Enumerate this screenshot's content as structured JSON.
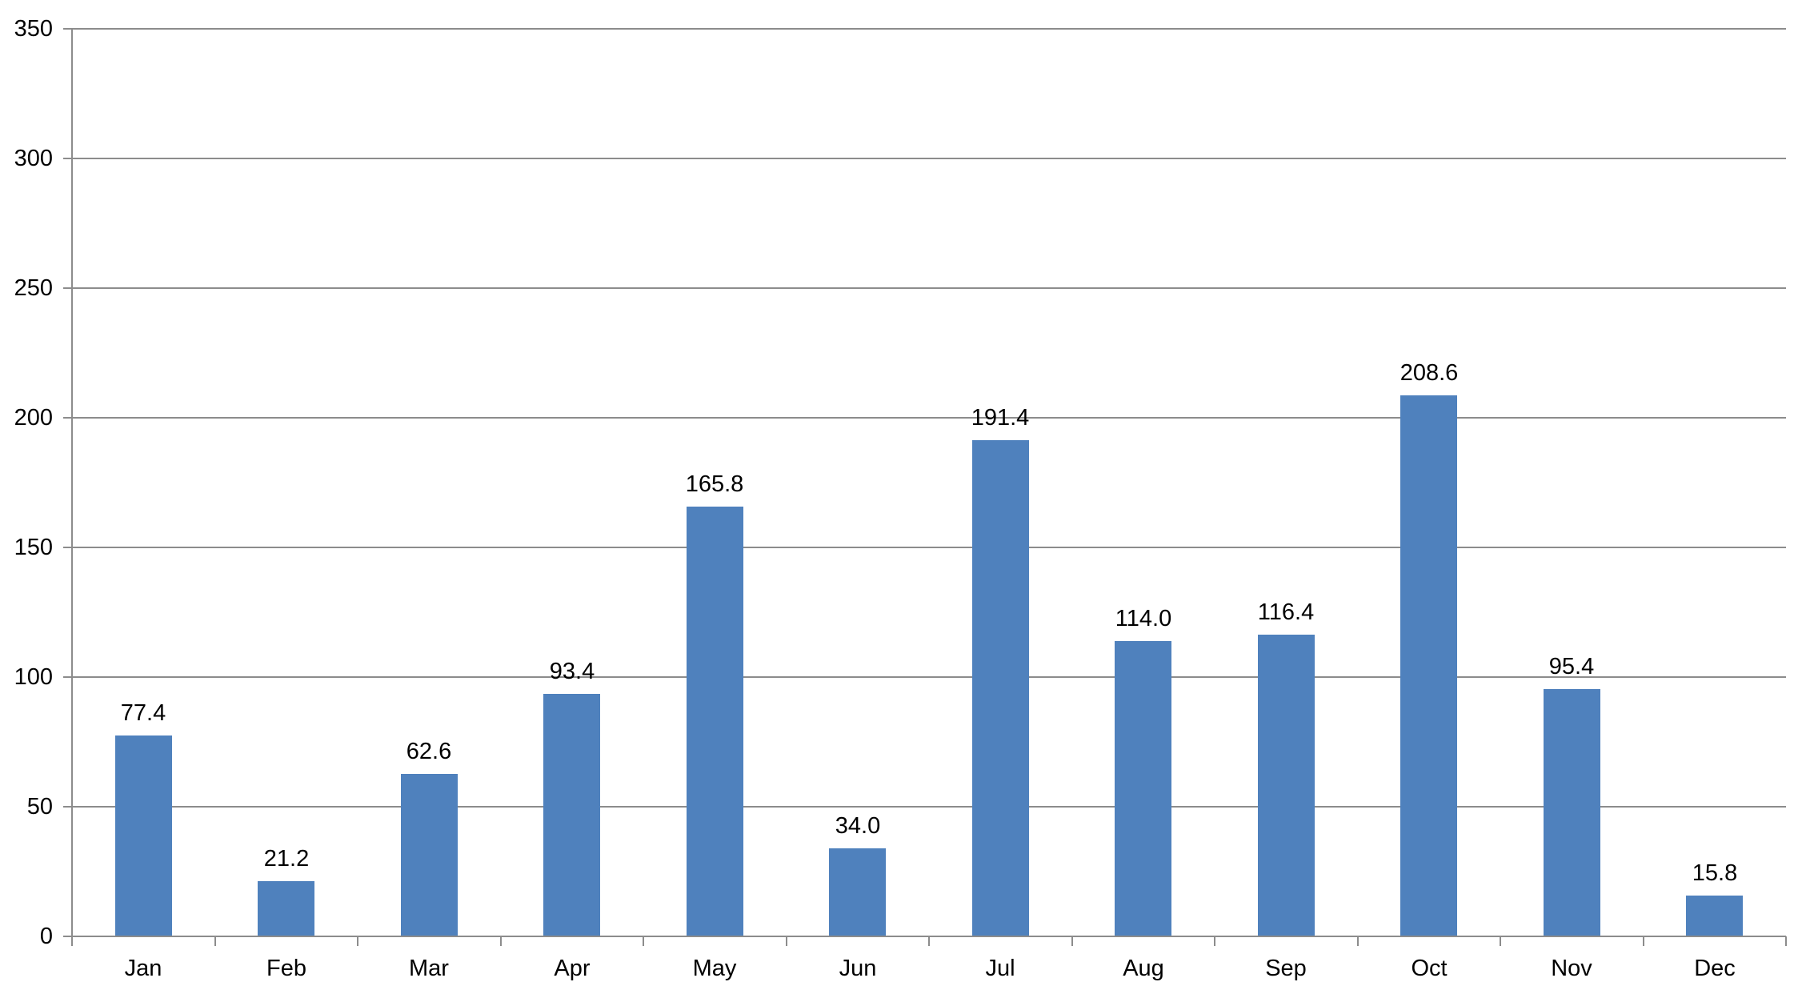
{
  "chart_data": {
    "type": "bar",
    "title": "",
    "xlabel": "",
    "ylabel": "",
    "categories": [
      "Jan",
      "Feb",
      "Mar",
      "Apr",
      "May",
      "Jun",
      "Jul",
      "Aug",
      "Sep",
      "Oct",
      "Nov",
      "Dec"
    ],
    "series": [
      {
        "name": "monthly-values",
        "values": [
          77.4,
          21.2,
          62.6,
          93.4,
          165.8,
          34.0,
          191.4,
          114.0,
          116.4,
          208.6,
          95.4,
          15.8
        ],
        "value_labels": [
          "77.4",
          "21.2",
          "62.6",
          "93.4",
          "165.8",
          "34.0",
          "191.4",
          "114.0",
          "116.4",
          "208.6",
          "95.4",
          "15.8"
        ]
      }
    ],
    "ylim": [
      0,
      350
    ],
    "yticks": [
      0,
      50,
      100,
      150,
      200,
      250,
      300,
      350
    ],
    "ytick_labels": [
      "0",
      "50",
      "100",
      "150",
      "200",
      "250",
      "300",
      "350"
    ],
    "grid": true,
    "legend": false,
    "data_labels_shown": true,
    "colors": {
      "bar": "#4F81BD",
      "gridline": "#8C8C8C",
      "axis": "#8C8C8C",
      "text": "#000000",
      "background": "#FFFFFF"
    }
  }
}
